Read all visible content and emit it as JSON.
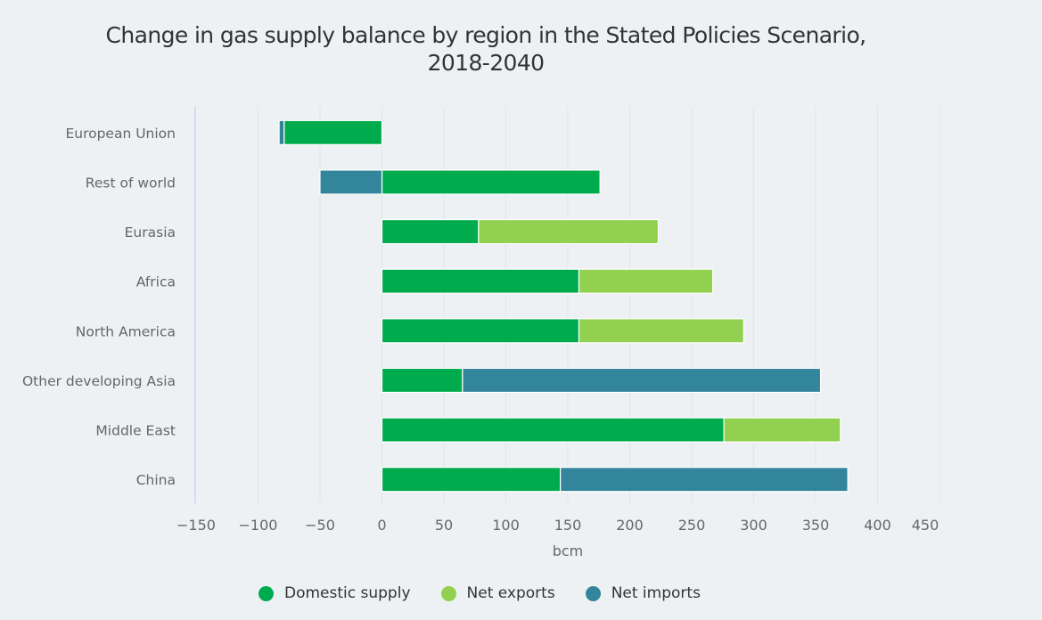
{
  "chart_data": {
    "type": "bar",
    "orientation": "horizontal",
    "stacked": true,
    "title": "Change in gas supply balance by region in the Stated Policies Scenario, 2018-2040",
    "title_lines": [
      "Change in gas supply balance by region in the Stated Policies Scenario,",
      "2018-2040"
    ],
    "xlabel": "bcm",
    "ylabel": "",
    "xlim": [
      -150,
      450
    ],
    "xticks": [
      -150,
      -100,
      -50,
      0,
      50,
      100,
      150,
      200,
      250,
      300,
      350,
      400,
      450
    ],
    "xtick_labels": [
      "−150",
      "−100",
      "−50",
      "0",
      "50",
      "100",
      "150",
      "200",
      "250",
      "300",
      "350",
      "400",
      "450"
    ],
    "grid": true,
    "legend_position": "bottom",
    "categories": [
      "European Union",
      "Rest of world",
      "Eurasia",
      "Africa",
      "North America",
      "Other developing Asia",
      "Middle East",
      "China"
    ],
    "series": [
      {
        "name": "Domestic supply",
        "color": "#00ab4e",
        "values": [
          -79,
          176,
          78,
          159,
          159,
          65,
          276,
          144
        ]
      },
      {
        "name": "Net exports",
        "color": "#92d050",
        "values": [
          0,
          0,
          145,
          108,
          133,
          0,
          94,
          0
        ]
      },
      {
        "name": "Net imports",
        "color": "#32859a",
        "values": [
          -4,
          -50,
          0,
          0,
          0,
          289,
          0,
          232
        ]
      }
    ]
  }
}
